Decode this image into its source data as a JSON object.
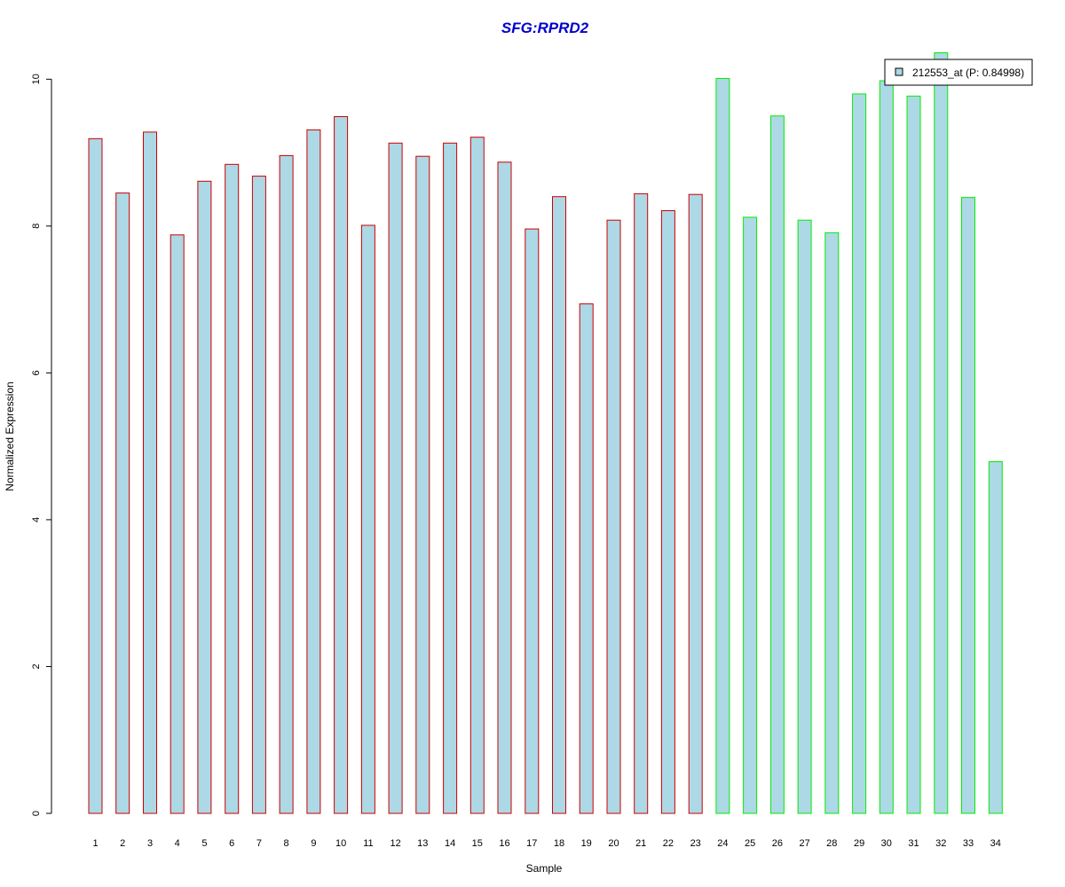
{
  "chart_data": {
    "type": "bar",
    "title": "SFG:RPRD2",
    "xlabel": "Sample",
    "ylabel": "Normalized Expression",
    "categories": [
      "1",
      "2",
      "3",
      "4",
      "5",
      "6",
      "7",
      "8",
      "9",
      "10",
      "11",
      "12",
      "13",
      "14",
      "15",
      "16",
      "17",
      "18",
      "19",
      "20",
      "21",
      "22",
      "23",
      "24",
      "25",
      "26",
      "27",
      "28",
      "29",
      "30",
      "31",
      "32",
      "33",
      "34"
    ],
    "values": [
      9.19,
      8.45,
      9.28,
      7.88,
      8.61,
      8.84,
      8.68,
      8.96,
      9.31,
      9.49,
      8.01,
      9.13,
      8.95,
      9.13,
      9.21,
      8.87,
      7.96,
      8.4,
      6.94,
      8.08,
      8.44,
      8.21,
      8.43,
      10.01,
      8.12,
      9.5,
      8.08,
      7.91,
      9.8,
      9.98,
      9.77,
      10.36,
      8.39,
      4.79
    ],
    "groups": [
      1,
      1,
      1,
      1,
      1,
      1,
      1,
      1,
      1,
      1,
      1,
      1,
      1,
      1,
      1,
      1,
      1,
      1,
      1,
      1,
      1,
      1,
      1,
      2,
      2,
      2,
      2,
      2,
      2,
      2,
      2,
      2,
      2,
      2
    ],
    "y_ticks": [
      0,
      2,
      4,
      6,
      8,
      10
    ],
    "ylim": [
      0,
      10.36
    ],
    "grid": false,
    "legend": {
      "label": "212553_at (P: 0.84998)",
      "placement": "top-right"
    },
    "colors": {
      "title": "#0000cc",
      "bar_fill": "#add8e6",
      "group1_border": "#cc0000",
      "group2_border": "#00ee00",
      "axis": "#000000"
    }
  }
}
